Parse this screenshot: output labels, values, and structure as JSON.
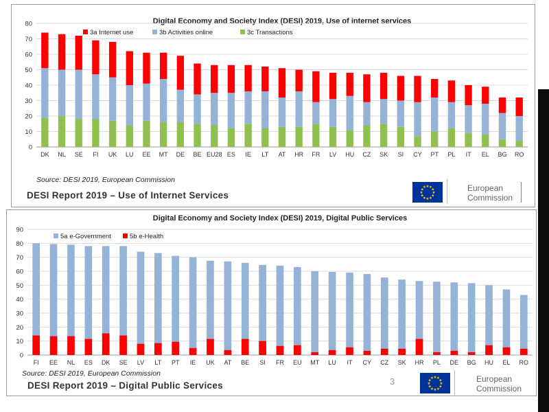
{
  "chart_data": [
    {
      "type": "bar",
      "stacked": true,
      "title": "Digital Economy and Society Index (DESI) 2019, Use of internet services",
      "categories": [
        "DK",
        "NL",
        "SE",
        "FI",
        "UK",
        "LU",
        "EE",
        "MT",
        "DE",
        "BE",
        "EU28",
        "ES",
        "IE",
        "LT",
        "AT",
        "HR",
        "FR",
        "LV",
        "HU",
        "CZ",
        "SK",
        "SI",
        "CY",
        "PT",
        "PL",
        "IT",
        "EL",
        "BG",
        "RO"
      ],
      "series": [
        {
          "name": "3c Transactions",
          "color": "#92c050",
          "values": [
            19,
            20,
            18,
            18,
            17,
            14,
            17,
            16,
            16,
            15,
            14,
            12,
            15,
            12,
            13,
            13,
            15,
            13,
            11,
            14,
            15,
            13,
            7,
            10,
            12,
            9,
            8,
            5,
            4
          ]
        },
        {
          "name": "3b Activities online",
          "color": "#95b3d7",
          "values": [
            32,
            30,
            32,
            29,
            28,
            26,
            24,
            28,
            21,
            19,
            21,
            23,
            21,
            24,
            19,
            23,
            14,
            18,
            22,
            15,
            16,
            17,
            22,
            22,
            17,
            18,
            20,
            17,
            16
          ]
        },
        {
          "name": "3a Internet use",
          "color": "#ff0000",
          "values": [
            23,
            23,
            22,
            22,
            23,
            22,
            20,
            17,
            22,
            20,
            18,
            18,
            17,
            16,
            19,
            14,
            20,
            17,
            15,
            18,
            17,
            16,
            17,
            12,
            14,
            13,
            11,
            10,
            12
          ]
        }
      ],
      "legend_order": [
        "3a Internet use",
        "3b Activities online",
        "3c Transactions"
      ],
      "legend_position": "top-left",
      "ylim": [
        0,
        80
      ],
      "yticks": [
        0,
        10,
        20,
        30,
        40,
        50,
        60,
        70,
        80
      ],
      "grid": true,
      "xlabel": "",
      "ylabel": ""
    },
    {
      "type": "bar",
      "stacked": false,
      "overlay": true,
      "title": "Digital Economy and Society Index (DESI) 2019, Digital Public Services",
      "categories": [
        "FI",
        "EE",
        "NL",
        "ES",
        "DK",
        "SE",
        "LV",
        "LT",
        "PT",
        "IE",
        "UK",
        "AT",
        "BE",
        "SI",
        "FR",
        "EU",
        "MT",
        "LU",
        "IT",
        "CY",
        "CZ",
        "SK",
        "HR",
        "PL",
        "DE",
        "BG",
        "HU",
        "EL",
        "RO"
      ],
      "series": [
        {
          "name": "5a e-Government",
          "color": "#95b3d7",
          "values": [
            80,
            79.5,
            79,
            78,
            78,
            78,
            74,
            73,
            71,
            70,
            67.5,
            67,
            66,
            64.5,
            64,
            63,
            60,
            59.5,
            59,
            58,
            55.5,
            54,
            53,
            52.5,
            52,
            51.5,
            50,
            47,
            43
          ]
        },
        {
          "name": "5b e-Health",
          "color": "#ff0000",
          "values": [
            14,
            13.5,
            13.5,
            11.5,
            15.5,
            14,
            8,
            8.5,
            9.5,
            5,
            11.5,
            3.5,
            11.5,
            10,
            6.5,
            7,
            2,
            3.5,
            5.5,
            3,
            4.5,
            4.5,
            11.5,
            2,
            3,
            2,
            7,
            5.5,
            4.5
          ]
        }
      ],
      "legend_order": [
        "5a e-Government",
        "5b e-Health"
      ],
      "legend_position": "top-left",
      "ylim": [
        0,
        90
      ],
      "yticks": [
        0,
        10,
        20,
        30,
        40,
        50,
        60,
        70,
        80,
        90
      ],
      "grid": true,
      "xlabel": "",
      "ylabel": ""
    }
  ],
  "top": {
    "source": "Source: DESI 2019, European Commission",
    "report_title": "DESI Report 2019 – Use of Internet Services"
  },
  "bottom": {
    "source": "Source: DESI 2019, European Commission",
    "report_title": "DESI Report 2019 – Digital Public Services",
    "slide_number": "3"
  },
  "logo": {
    "line1": "European",
    "line2": "Commission"
  },
  "colors": {
    "flag_blue": "#003399",
    "star_yellow": "#ffcc00",
    "grid": "#d9d9d9",
    "axis_text": "#333333"
  }
}
